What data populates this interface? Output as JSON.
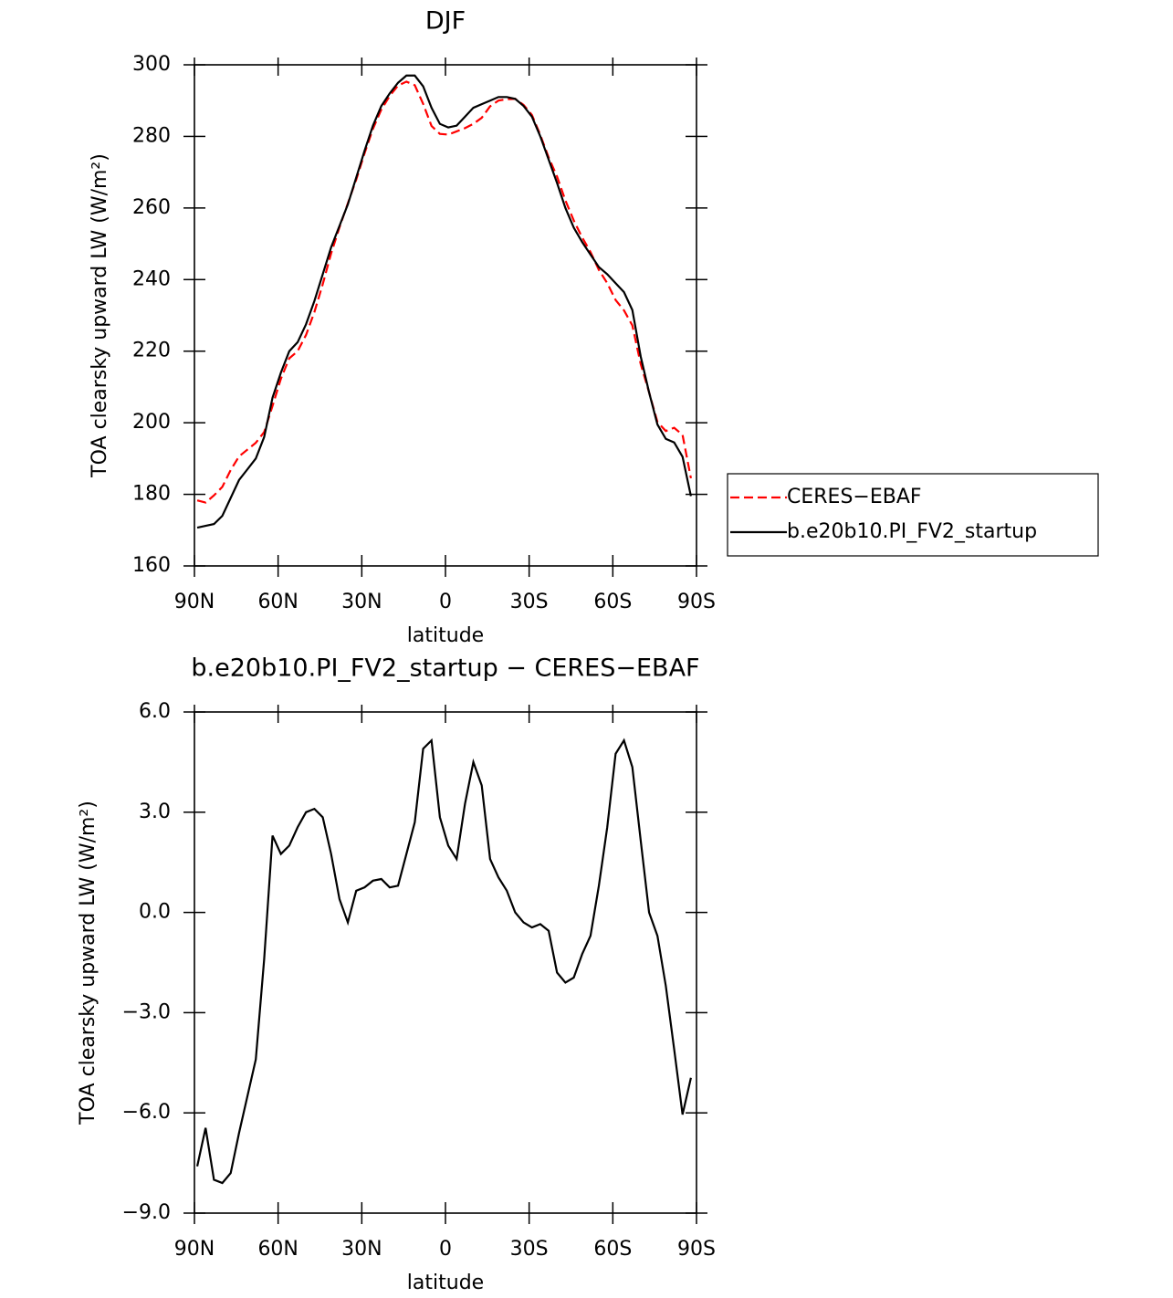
{
  "chart_data": [
    {
      "type": "line",
      "title": "DJF",
      "xlabel": "latitude",
      "ylabel": "TOA clearsky upward LW (W/m²)",
      "x": [
        89,
        86,
        83,
        80,
        77,
        74,
        71,
        68,
        65,
        62,
        59,
        56,
        53,
        50,
        47,
        44,
        41,
        38,
        35,
        32,
        29,
        26,
        23,
        20,
        17,
        14,
        11,
        8,
        5,
        2,
        -1,
        -4,
        -7,
        -10,
        -13,
        -16,
        -19,
        -22,
        -25,
        -28,
        -31,
        -34,
        -37,
        -40,
        -43,
        -46,
        -49,
        -52,
        -55,
        -58,
        -61,
        -64,
        -67,
        -70,
        -73,
        -76,
        -79,
        -82,
        -85,
        -88
      ],
      "series": [
        {
          "name": "CERES−EBAF",
          "color": "#ff0000",
          "line_style": "dashed",
          "values": [
            178.3,
            177.7,
            179.7,
            182.1,
            186.8,
            190.6,
            192.5,
            194.4,
            197.4,
            204.7,
            212.3,
            218,
            220,
            224.5,
            230.9,
            238.7,
            247.3,
            254.6,
            261.3,
            267.9,
            275.3,
            282.1,
            287.5,
            291.3,
            294.2,
            295.3,
            294.3,
            289.1,
            282.9,
            280.7,
            280.5,
            281.4,
            282.3,
            283.5,
            285.2,
            288.4,
            290,
            290.4,
            290.5,
            288.8,
            286,
            280.4,
            274.1,
            268.8,
            262.1,
            256.5,
            251.8,
            247.7,
            242.7,
            239,
            234.3,
            231.4,
            227.2,
            216.4,
            208.5,
            200.2,
            197.7,
            198.6,
            196.6,
            184.5
          ]
        },
        {
          "name": "b.e20b10.PI_FV2_startup",
          "color": "#000000",
          "line_style": "solid",
          "values": [
            170.7,
            171.2,
            171.7,
            174,
            179,
            184,
            187,
            190,
            196,
            207,
            214,
            220,
            222.5,
            227.5,
            234,
            241.5,
            249,
            255,
            261,
            268.5,
            276,
            283,
            288.5,
            292,
            295,
            297,
            297,
            294,
            288,
            283.5,
            282.5,
            283,
            285.5,
            288,
            289,
            290,
            291,
            291,
            290.5,
            288.5,
            285.5,
            280,
            273.5,
            267,
            260,
            254.5,
            250.5,
            247,
            243.5,
            241.5,
            239,
            236.5,
            231.5,
            218.5,
            208.5,
            199.5,
            195.5,
            194.5,
            190.5,
            179.5
          ]
        }
      ],
      "xlim": [
        90,
        -90
      ],
      "xticks": [
        {
          "value": 90,
          "label": "90N"
        },
        {
          "value": 60,
          "label": "60N"
        },
        {
          "value": 30,
          "label": "30N"
        },
        0,
        {
          "value": -30,
          "label": "30S"
        },
        {
          "value": -60,
          "label": "60S"
        },
        {
          "value": -90,
          "label": "90S"
        }
      ],
      "ylim": [
        160,
        300
      ],
      "yticks": [
        160,
        180,
        200,
        220,
        240,
        260,
        280,
        300
      ],
      "grid": false,
      "legend": "right"
    },
    {
      "type": "line",
      "title": "b.e20b10.PI_FV2_startup − CERES−EBAF",
      "xlabel": "latitude",
      "ylabel": "TOA clearsky upward LW (W/m²)",
      "x": [
        89,
        86,
        83,
        80,
        77,
        74,
        71,
        68,
        65,
        62,
        59,
        56,
        53,
        50,
        47,
        44,
        41,
        38,
        35,
        32,
        29,
        26,
        23,
        20,
        17,
        14,
        11,
        8,
        5,
        2,
        -1,
        -4,
        -7,
        -10,
        -13,
        -16,
        -19,
        -22,
        -25,
        -28,
        -31,
        -34,
        -37,
        -40,
        -43,
        -46,
        -49,
        -52,
        -55,
        -58,
        -61,
        -64,
        -67,
        -70,
        -73,
        -76,
        -79,
        -82,
        -85,
        -88
      ],
      "values": [
        -7.6,
        -6.45,
        -8,
        -8.1,
        -7.8,
        -6.6,
        -5.5,
        -4.4,
        -1.4,
        2.3,
        1.75,
        2,
        2.55,
        3,
        3.1,
        2.85,
        1.75,
        0.4,
        -0.3,
        0.65,
        0.75,
        0.95,
        1,
        0.75,
        0.8,
        1.75,
        2.7,
        4.9,
        5.15,
        2.85,
        2,
        1.6,
        3.25,
        4.5,
        3.8,
        1.6,
        1.05,
        0.65,
        0,
        -0.3,
        -0.45,
        -0.35,
        -0.55,
        -1.8,
        -2.1,
        -1.95,
        -1.25,
        -0.7,
        0.8,
        2.55,
        4.75,
        5.15,
        4.35,
        2.15,
        0,
        -0.7,
        -2.2,
        -4.1,
        -6.05,
        -4.95
      ],
      "color": "#000000",
      "line_style": "solid",
      "xlim": [
        90,
        -90
      ],
      "xticks": [
        {
          "value": 90,
          "label": "90N"
        },
        {
          "value": 60,
          "label": "60N"
        },
        {
          "value": 30,
          "label": "30N"
        },
        0,
        {
          "value": -30,
          "label": "30S"
        },
        {
          "value": -60,
          "label": "60S"
        },
        {
          "value": -90,
          "label": "90S"
        }
      ],
      "ylim": [
        -9,
        6
      ],
      "yticks": [
        {
          "value": -9,
          "label": "−9.0"
        },
        {
          "value": -6,
          "label": "−6.0"
        },
        {
          "value": -3,
          "label": "−3.0"
        },
        {
          "value": 0,
          "label": "0.0"
        },
        {
          "value": 3,
          "label": "3.0"
        },
        {
          "value": 6,
          "label": "6.0"
        }
      ],
      "grid": false
    }
  ]
}
